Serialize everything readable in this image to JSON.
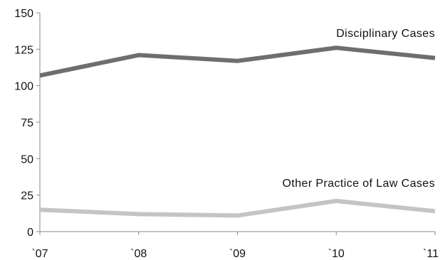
{
  "chart_data": {
    "type": "line",
    "categories": [
      "`07",
      "`08",
      "`09",
      "`10",
      "`11"
    ],
    "ylim": [
      0,
      150
    ],
    "yticks": [
      0,
      25,
      50,
      75,
      100,
      125,
      150
    ],
    "grid": false,
    "series": [
      {
        "name": "Disciplinary Cases",
        "values": [
          107,
          121,
          117,
          126,
          119
        ],
        "color": "#6e6e6e"
      },
      {
        "name": "Other Practice of Law Cases",
        "values": [
          15,
          12,
          11,
          21,
          14
        ],
        "color": "#c4c4c4"
      }
    ]
  }
}
